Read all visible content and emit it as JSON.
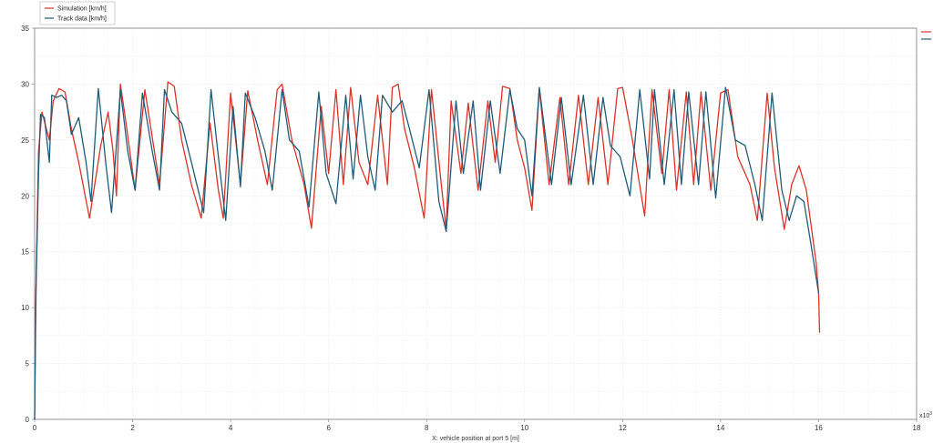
{
  "chart_data": {
    "type": "line",
    "xlabel": "X: vehicle position at port 5 [m]",
    "x_scale_label": "x10",
    "x_scale_exponent": "3",
    "xlim": [
      0,
      18
    ],
    "ylim": [
      0,
      35
    ],
    "x_ticks": [
      "0",
      "2",
      "4",
      "6",
      "8",
      "10",
      "12",
      "14",
      "16",
      "18"
    ],
    "y_ticks": [
      "0",
      "5",
      "10",
      "15",
      "20",
      "25",
      "30",
      "35"
    ],
    "grid": true,
    "legend_position": "top-left",
    "series": [
      {
        "name": "Simulation [km/h]",
        "color": "#d9332b",
        "points": [
          [
            0,
            0
          ],
          [
            0.02,
            10
          ],
          [
            0.08,
            24
          ],
          [
            0.15,
            27.5
          ],
          [
            0.3,
            25
          ],
          [
            0.38,
            28.5
          ],
          [
            0.5,
            29.6
          ],
          [
            0.62,
            29.3
          ],
          [
            0.75,
            26
          ],
          [
            0.9,
            23
          ],
          [
            1.12,
            18
          ],
          [
            1.35,
            24.5
          ],
          [
            1.5,
            27.5
          ],
          [
            1.6,
            24
          ],
          [
            1.67,
            20
          ],
          [
            1.75,
            30
          ],
          [
            1.85,
            27
          ],
          [
            2.05,
            20.5
          ],
          [
            2.25,
            29.5
          ],
          [
            2.55,
            21
          ],
          [
            2.72,
            30.2
          ],
          [
            2.85,
            29.8
          ],
          [
            3.0,
            25
          ],
          [
            3.2,
            21
          ],
          [
            3.4,
            18
          ],
          [
            3.58,
            26.5
          ],
          [
            3.75,
            20.5
          ],
          [
            3.85,
            18
          ],
          [
            4.0,
            29.2
          ],
          [
            4.2,
            21
          ],
          [
            4.35,
            29.4
          ],
          [
            4.55,
            25
          ],
          [
            4.75,
            21
          ],
          [
            4.95,
            29.5
          ],
          [
            5.05,
            30
          ],
          [
            5.25,
            25
          ],
          [
            5.5,
            21
          ],
          [
            5.65,
            17.1
          ],
          [
            5.85,
            28
          ],
          [
            6.0,
            22
          ],
          [
            6.15,
            29.5
          ],
          [
            6.3,
            21
          ],
          [
            6.45,
            29.7
          ],
          [
            6.62,
            23
          ],
          [
            6.8,
            21
          ],
          [
            7.0,
            29
          ],
          [
            7.2,
            21
          ],
          [
            7.3,
            29.7
          ],
          [
            7.42,
            30
          ],
          [
            7.55,
            26
          ],
          [
            7.75,
            22.5
          ],
          [
            7.95,
            18
          ],
          [
            8.1,
            29.5
          ],
          [
            8.3,
            21
          ],
          [
            8.4,
            17
          ],
          [
            8.5,
            28.5
          ],
          [
            8.7,
            22
          ],
          [
            8.85,
            28.3
          ],
          [
            9.05,
            20.5
          ],
          [
            9.25,
            28.5
          ],
          [
            9.4,
            23
          ],
          [
            9.55,
            29.8
          ],
          [
            9.7,
            29.6
          ],
          [
            9.85,
            25
          ],
          [
            10.0,
            22.5
          ],
          [
            10.15,
            18.7
          ],
          [
            10.3,
            29.6
          ],
          [
            10.5,
            21
          ],
          [
            10.72,
            28.8
          ],
          [
            10.9,
            21
          ],
          [
            11.1,
            29
          ],
          [
            11.3,
            21
          ],
          [
            11.5,
            28.8
          ],
          [
            11.7,
            21
          ],
          [
            11.9,
            29.6
          ],
          [
            12.0,
            29.7
          ],
          [
            12.2,
            25
          ],
          [
            12.45,
            18.2
          ],
          [
            12.6,
            29.5
          ],
          [
            12.8,
            22
          ],
          [
            12.95,
            29.5
          ],
          [
            13.1,
            20.5
          ],
          [
            13.3,
            29.3
          ],
          [
            13.45,
            21
          ],
          [
            13.6,
            29.3
          ],
          [
            13.8,
            20.5
          ],
          [
            14.0,
            29.2
          ],
          [
            14.15,
            29.5
          ],
          [
            14.35,
            23.5
          ],
          [
            14.6,
            21
          ],
          [
            14.75,
            17.8
          ],
          [
            14.95,
            29.2
          ],
          [
            15.1,
            22.5
          ],
          [
            15.3,
            17
          ],
          [
            15.45,
            21
          ],
          [
            15.6,
            22.7
          ],
          [
            15.75,
            20.5
          ],
          [
            15.95,
            14
          ],
          [
            16.0,
            11.3
          ],
          [
            16.02,
            7.8
          ]
        ]
      },
      {
        "name": "Track data [km/h]",
        "color": "#1f5c78",
        "points": [
          [
            0,
            0
          ],
          [
            0.03,
            12
          ],
          [
            0.08,
            22
          ],
          [
            0.12,
            27.3
          ],
          [
            0.2,
            27
          ],
          [
            0.25,
            25
          ],
          [
            0.3,
            23
          ],
          [
            0.35,
            29
          ],
          [
            0.45,
            28.8
          ],
          [
            0.55,
            29
          ],
          [
            0.65,
            28.5
          ],
          [
            0.75,
            25.5
          ],
          [
            0.9,
            27
          ],
          [
            1.05,
            23
          ],
          [
            1.15,
            19.5
          ],
          [
            1.3,
            29.6
          ],
          [
            1.45,
            23
          ],
          [
            1.57,
            18.5
          ],
          [
            1.75,
            29.5
          ],
          [
            1.9,
            24
          ],
          [
            2.05,
            20.5
          ],
          [
            2.2,
            29.2
          ],
          [
            2.4,
            24
          ],
          [
            2.55,
            20.5
          ],
          [
            2.65,
            29.5
          ],
          [
            2.8,
            27.5
          ],
          [
            3.0,
            26.5
          ],
          [
            3.2,
            23
          ],
          [
            3.45,
            18.5
          ],
          [
            3.6,
            29.5
          ],
          [
            3.75,
            23.5
          ],
          [
            3.9,
            17.8
          ],
          [
            4.05,
            28
          ],
          [
            4.2,
            20.8
          ],
          [
            4.3,
            29.2
          ],
          [
            4.5,
            27
          ],
          [
            4.7,
            24
          ],
          [
            4.85,
            20.5
          ],
          [
            5.05,
            29.5
          ],
          [
            5.2,
            25
          ],
          [
            5.4,
            24
          ],
          [
            5.6,
            19
          ],
          [
            5.8,
            29.3
          ],
          [
            5.95,
            22
          ],
          [
            6.15,
            19.3
          ],
          [
            6.35,
            29
          ],
          [
            6.5,
            21.5
          ],
          [
            6.65,
            29
          ],
          [
            6.8,
            23.5
          ],
          [
            6.95,
            20.5
          ],
          [
            7.1,
            29
          ],
          [
            7.3,
            27.5
          ],
          [
            7.5,
            28.5
          ],
          [
            7.65,
            26
          ],
          [
            7.85,
            22.5
          ],
          [
            8.05,
            29.5
          ],
          [
            8.25,
            19.5
          ],
          [
            8.4,
            16.8
          ],
          [
            8.6,
            28.5
          ],
          [
            8.75,
            22
          ],
          [
            8.95,
            28.5
          ],
          [
            9.1,
            20.5
          ],
          [
            9.3,
            28.5
          ],
          [
            9.5,
            22
          ],
          [
            9.7,
            29.5
          ],
          [
            9.85,
            26
          ],
          [
            10.0,
            25
          ],
          [
            10.15,
            20
          ],
          [
            10.3,
            29.7
          ],
          [
            10.55,
            21
          ],
          [
            10.75,
            28.8
          ],
          [
            10.95,
            21
          ],
          [
            11.2,
            29
          ],
          [
            11.4,
            21
          ],
          [
            11.6,
            28.8
          ],
          [
            11.75,
            24.5
          ],
          [
            11.95,
            23.5
          ],
          [
            12.15,
            20
          ],
          [
            12.35,
            29.5
          ],
          [
            12.55,
            21.5
          ],
          [
            12.65,
            29.5
          ],
          [
            12.85,
            21
          ],
          [
            13.05,
            29.5
          ],
          [
            13.2,
            21
          ],
          [
            13.35,
            29.3
          ],
          [
            13.55,
            21
          ],
          [
            13.7,
            29.3
          ],
          [
            13.9,
            19.8
          ],
          [
            14.1,
            29.7
          ],
          [
            14.3,
            25
          ],
          [
            14.5,
            24.5
          ],
          [
            14.7,
            21
          ],
          [
            14.85,
            17.8
          ],
          [
            15.05,
            29.2
          ],
          [
            15.25,
            20.5
          ],
          [
            15.4,
            17.8
          ],
          [
            15.55,
            20
          ],
          [
            15.7,
            19.5
          ],
          [
            15.85,
            15.5
          ],
          [
            16.0,
            11.3
          ]
        ]
      }
    ]
  }
}
